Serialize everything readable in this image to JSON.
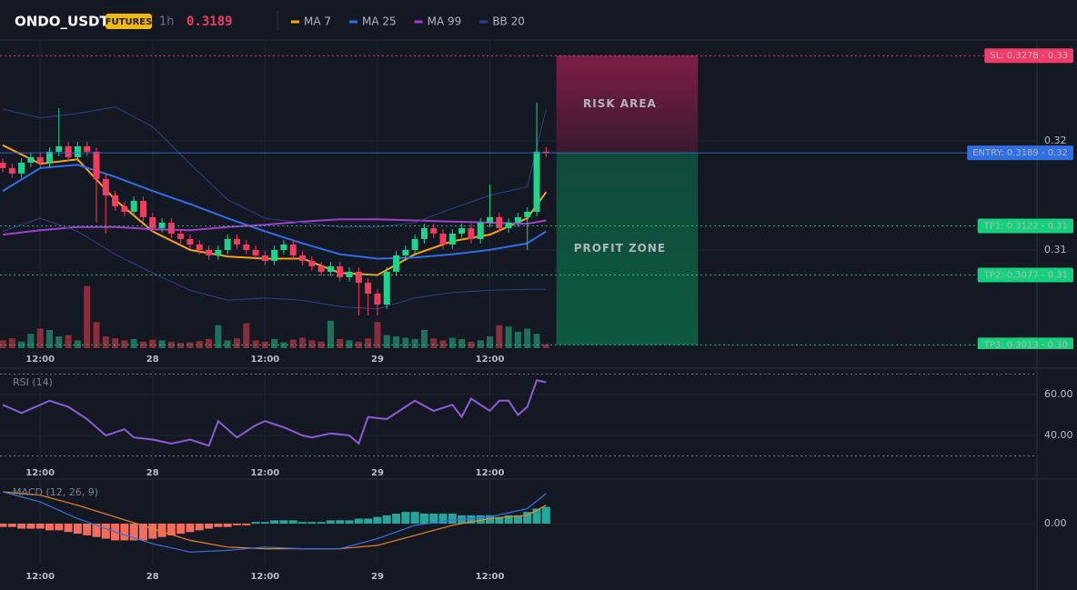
{
  "chart_data": [
    {
      "type": "candlestick",
      "title": "ONDO_USDT",
      "badge": "FUTURES",
      "interval": "1h",
      "last_price": 0.3189,
      "up_color": "#1ed38a",
      "down_color": "#f23c5e",
      "volume_up_color": "#1f6f5c",
      "volume_down_color": "#8b2c3a",
      "xlim": [
        -0.29,
        110.4
      ],
      "xticks": [
        {
          "value": 4,
          "label": "12:00"
        },
        {
          "value": 16,
          "label": "28"
        },
        {
          "value": 28,
          "label": "12:00"
        },
        {
          "value": 40,
          "label": "29"
        },
        {
          "value": 52,
          "label": "12:00"
        }
      ],
      "ylim": [
        0.301,
        0.3289
      ],
      "yticks": [
        0.32,
        0.31
      ],
      "grid": true,
      "open": [
        0.318,
        0.3175,
        0.317,
        0.318,
        0.3185,
        0.318,
        0.319,
        0.3195,
        0.3185,
        0.3195,
        0.319,
        0.3165,
        0.315,
        0.314,
        0.3135,
        0.3145,
        0.313,
        0.312,
        0.3125,
        0.3115,
        0.311,
        0.3105,
        0.31,
        0.3095,
        0.31,
        0.311,
        0.3105,
        0.31,
        0.3095,
        0.309,
        0.31,
        0.3105,
        0.3095,
        0.309,
        0.3085,
        0.308,
        0.3085,
        0.3075,
        0.308,
        0.307,
        0.306,
        0.305,
        0.308,
        0.3095,
        0.31,
        0.311,
        0.312,
        0.3115,
        0.3105,
        0.3115,
        0.312,
        0.311,
        0.3125,
        0.313,
        0.312,
        0.3125,
        0.313,
        0.3135,
        0.319
      ],
      "high": [
        0.3184,
        0.3179,
        0.3184,
        0.3189,
        0.3189,
        0.3194,
        0.323,
        0.3199,
        0.3199,
        0.3199,
        0.3194,
        0.3169,
        0.3154,
        0.3144,
        0.3149,
        0.3149,
        0.3134,
        0.3129,
        0.3129,
        0.3119,
        0.3114,
        0.3109,
        0.3104,
        0.3104,
        0.3114,
        0.3114,
        0.3109,
        0.3104,
        0.3099,
        0.3104,
        0.3109,
        0.3109,
        0.3099,
        0.3094,
        0.3089,
        0.3089,
        0.3089,
        0.3084,
        0.3084,
        0.3074,
        0.3064,
        0.3084,
        0.3099,
        0.3104,
        0.3114,
        0.3124,
        0.3124,
        0.3119,
        0.3119,
        0.3124,
        0.3124,
        0.3129,
        0.316,
        0.3134,
        0.3129,
        0.3134,
        0.3139,
        0.3235,
        0.3194
      ],
      "low": [
        0.3171,
        0.3166,
        0.3166,
        0.3176,
        0.3176,
        0.3176,
        0.3186,
        0.3181,
        0.3181,
        0.3186,
        0.3125,
        0.3115,
        0.3136,
        0.3131,
        0.3131,
        0.3126,
        0.3116,
        0.3116,
        0.3111,
        0.3106,
        0.3101,
        0.3096,
        0.3091,
        0.3091,
        0.3096,
        0.3101,
        0.3096,
        0.3091,
        0.3086,
        0.3086,
        0.3096,
        0.3091,
        0.3086,
        0.3081,
        0.3076,
        0.3076,
        0.3071,
        0.3071,
        0.304,
        0.304,
        0.304,
        0.3046,
        0.3076,
        0.3091,
        0.3096,
        0.3106,
        0.3111,
        0.3101,
        0.3101,
        0.3111,
        0.3106,
        0.3106,
        0.3121,
        0.3116,
        0.3116,
        0.3121,
        0.31,
        0.3131,
        0.3185
      ],
      "close": [
        0.3175,
        0.317,
        0.318,
        0.3185,
        0.318,
        0.319,
        0.3195,
        0.3185,
        0.3195,
        0.319,
        0.3165,
        0.315,
        0.314,
        0.3135,
        0.3145,
        0.313,
        0.312,
        0.3125,
        0.3115,
        0.311,
        0.3105,
        0.31,
        0.3095,
        0.31,
        0.311,
        0.3105,
        0.31,
        0.3095,
        0.309,
        0.31,
        0.3105,
        0.3095,
        0.309,
        0.3085,
        0.308,
        0.3085,
        0.3075,
        0.308,
        0.307,
        0.306,
        0.305,
        0.308,
        0.3095,
        0.31,
        0.311,
        0.312,
        0.3115,
        0.3105,
        0.3115,
        0.312,
        0.311,
        0.3125,
        0.313,
        0.312,
        0.3125,
        0.313,
        0.3135,
        0.319,
        0.3189
      ],
      "volume": [
        12,
        15,
        10,
        22,
        30,
        28,
        18,
        20,
        12,
        95,
        40,
        18,
        15,
        12,
        14,
        10,
        13,
        12,
        10,
        8,
        9,
        11,
        14,
        35,
        12,
        15,
        38,
        12,
        10,
        14,
        9,
        13,
        16,
        12,
        10,
        42,
        14,
        12,
        10,
        15,
        40,
        20,
        18,
        16,
        14,
        28,
        15,
        12,
        16,
        14,
        10,
        12,
        18,
        35,
        33,
        25,
        30,
        22,
        6
      ],
      "lines_x": [
        0,
        4,
        8,
        12,
        16,
        20,
        24,
        28,
        32,
        36,
        40,
        44,
        48,
        52,
        56,
        58
      ],
      "lines": [
        {
          "name": "MA 7",
          "color": "#f7a21b",
          "values": [
            0.3196,
            0.3179,
            0.3183,
            0.3146,
            0.3117,
            0.31,
            0.3094,
            0.3092,
            0.3092,
            0.3079,
            0.3077,
            0.3096,
            0.3108,
            0.3114,
            0.3129,
            0.3153
          ]
        },
        {
          "name": "MA 25",
          "color": "#2f6fe4",
          "values": [
            0.3154,
            0.3175,
            0.3178,
            0.3167,
            0.3154,
            0.3142,
            0.3129,
            0.3117,
            0.3106,
            0.3096,
            0.3092,
            0.3093,
            0.3096,
            0.31,
            0.3106,
            0.3117
          ]
        },
        {
          "name": "MA 99",
          "color": "#a23fd0",
          "values": [
            0.3114,
            0.3118,
            0.3121,
            0.3121,
            0.3119,
            0.3118,
            0.3121,
            0.3123,
            0.3126,
            0.3128,
            0.3128,
            0.3127,
            0.3126,
            0.3125,
            0.3124,
            0.3127
          ]
        },
        {
          "name": "BB 20",
          "color": "#2c3e8c",
          "upper": [
            0.3229,
            0.3221,
            0.3225,
            0.3231,
            0.3213,
            0.3179,
            0.3146,
            0.3129,
            0.3125,
            0.3121,
            0.3121,
            0.3125,
            0.3138,
            0.315,
            0.3158,
            0.3229
          ],
          "lower": [
            0.3117,
            0.3129,
            0.3117,
            0.3096,
            0.3079,
            0.3063,
            0.3054,
            0.3056,
            0.3054,
            0.3048,
            0.3046,
            0.3056,
            0.3061,
            0.3063,
            0.3064,
            0.3064
          ]
        }
      ],
      "levels": [
        {
          "label": "SL: 0.3278 - 0.33",
          "value": 0.3278,
          "color": "#f23c6a",
          "style": "dotted"
        },
        {
          "label": "ENTRY: 0.3189 - 0.32",
          "value": 0.3189,
          "color": "#2f6fe4",
          "style": "solid"
        },
        {
          "label": "TP1: 0.3122 - 0.31",
          "value": 0.3122,
          "color": "#16d17c",
          "style": "dotted"
        },
        {
          "label": "TP2: 0.3077 - 0.31",
          "value": 0.3077,
          "color": "#16d17c",
          "style": "dotted"
        },
        {
          "label": "TP3: 0.3013 - 0.30",
          "value": 0.3013,
          "color": "#16d17c",
          "style": "dotted"
        }
      ],
      "zones": [
        {
          "label": "RISK AREA",
          "from": 0.3189,
          "to": 0.3278,
          "start": 59.1,
          "end": 74.2,
          "fill": "url(#risk-grad)",
          "text_color": "#f0437a"
        },
        {
          "label": "PROFIT ZONE",
          "from": 0.3013,
          "to": 0.3189,
          "start": 59.1,
          "end": 74.2,
          "fill": "url(#profit-grad)",
          "text_color": "#3bd19a"
        }
      ]
    },
    {
      "type": "line",
      "title": "RSI (14)",
      "color": "#8e5bd6",
      "xlim": [
        -0.29,
        110.4
      ],
      "xticks": [
        {
          "value": 4,
          "label": "12:00"
        },
        {
          "value": 16,
          "label": "28"
        },
        {
          "value": 28,
          "label": "12:00"
        },
        {
          "value": 40,
          "label": "29"
        },
        {
          "value": 52,
          "label": "12:00"
        }
      ],
      "ylim": [
        27.1,
        72.9
      ],
      "yticks": [
        {
          "value": 60,
          "label": "60.00"
        },
        {
          "value": 40,
          "label": "40.00"
        }
      ],
      "bands": [
        70,
        30
      ],
      "grid": true,
      "x": [
        0,
        2,
        4,
        5,
        7,
        9,
        11,
        13,
        14,
        16,
        18,
        20,
        22,
        23,
        25,
        27,
        28,
        30,
        32,
        33,
        35,
        37,
        38,
        39,
        41,
        43,
        44,
        46,
        48,
        49,
        50,
        52,
        53,
        54,
        55,
        56,
        57,
        58
      ],
      "values": [
        55,
        51,
        55,
        57,
        54,
        48,
        40,
        43,
        39,
        38,
        36,
        38,
        35,
        47,
        39,
        45,
        47,
        44,
        40,
        39,
        41,
        40,
        36,
        49,
        48,
        54,
        57,
        52,
        55,
        49,
        58,
        52,
        57,
        57,
        50,
        54,
        67,
        66
      ]
    },
    {
      "type": "macd",
      "title": "MACD (12, 26, 9)",
      "positive_color": "#26a69a",
      "negative_color": "#f26d5b",
      "xlim": [
        -0.29,
        110.4
      ],
      "xticks": [
        {
          "value": 4,
          "label": "12:00"
        },
        {
          "value": 16,
          "label": "28"
        },
        {
          "value": 28,
          "label": "12:00"
        },
        {
          "value": 40,
          "label": "29"
        },
        {
          "value": 52,
          "label": "12:00"
        }
      ],
      "ylim": [
        -0.0025,
        0.0025
      ],
      "yticks": [
        {
          "value": 0,
          "label": "0.00"
        }
      ],
      "grid": true,
      "x": [
        0,
        4,
        8,
        12,
        16,
        20,
        24,
        28,
        32,
        36,
        40,
        44,
        48,
        52,
        56,
        58
      ],
      "macd": {
        "color": "#3a6fe0",
        "values": [
          0.0019,
          0.0013,
          0.0003,
          -0.0005,
          -0.0012,
          -0.0017,
          -0.0016,
          -0.0014,
          -0.0015,
          -0.0015,
          -0.0009,
          -0.0001,
          0.0002,
          0.0004,
          0.0009,
          0.0018
        ]
      },
      "signal": {
        "color": "#e8862a",
        "values": [
          0.0019,
          0.0017,
          0.0011,
          0.0004,
          -0.0003,
          -0.001,
          -0.0014,
          -0.0015,
          -0.0015,
          -0.0015,
          -0.0013,
          -0.0007,
          -0.0001,
          0.0003,
          0.0005,
          0.0011
        ]
      },
      "histogram": [
        -0.0002,
        -0.0002,
        -0.0003,
        -0.0003,
        -0.0003,
        -0.0004,
        -0.0004,
        -0.0005,
        -0.0006,
        -0.0007,
        -0.0008,
        -0.0009,
        -0.001,
        -0.001,
        -0.001,
        -0.001,
        -0.0009,
        -0.0008,
        -0.0007,
        -0.0006,
        -0.0005,
        -0.0004,
        -0.0003,
        -0.0002,
        -0.0002,
        -0.0001,
        -0.0001,
        0.0001,
        0.0001,
        0.0002,
        0.0002,
        0.0002,
        0.0001,
        0.0001,
        0.0001,
        0.0002,
        0.0002,
        0.0002,
        0.0003,
        0.0003,
        0.0004,
        0.0005,
        0.0006,
        0.0007,
        0.0007,
        0.0006,
        0.0006,
        0.0006,
        0.0006,
        0.0005,
        0.0005,
        0.0005,
        0.0005,
        0.0004,
        0.0005,
        0.0005,
        0.0007,
        0.0009,
        0.001
      ]
    }
  ]
}
